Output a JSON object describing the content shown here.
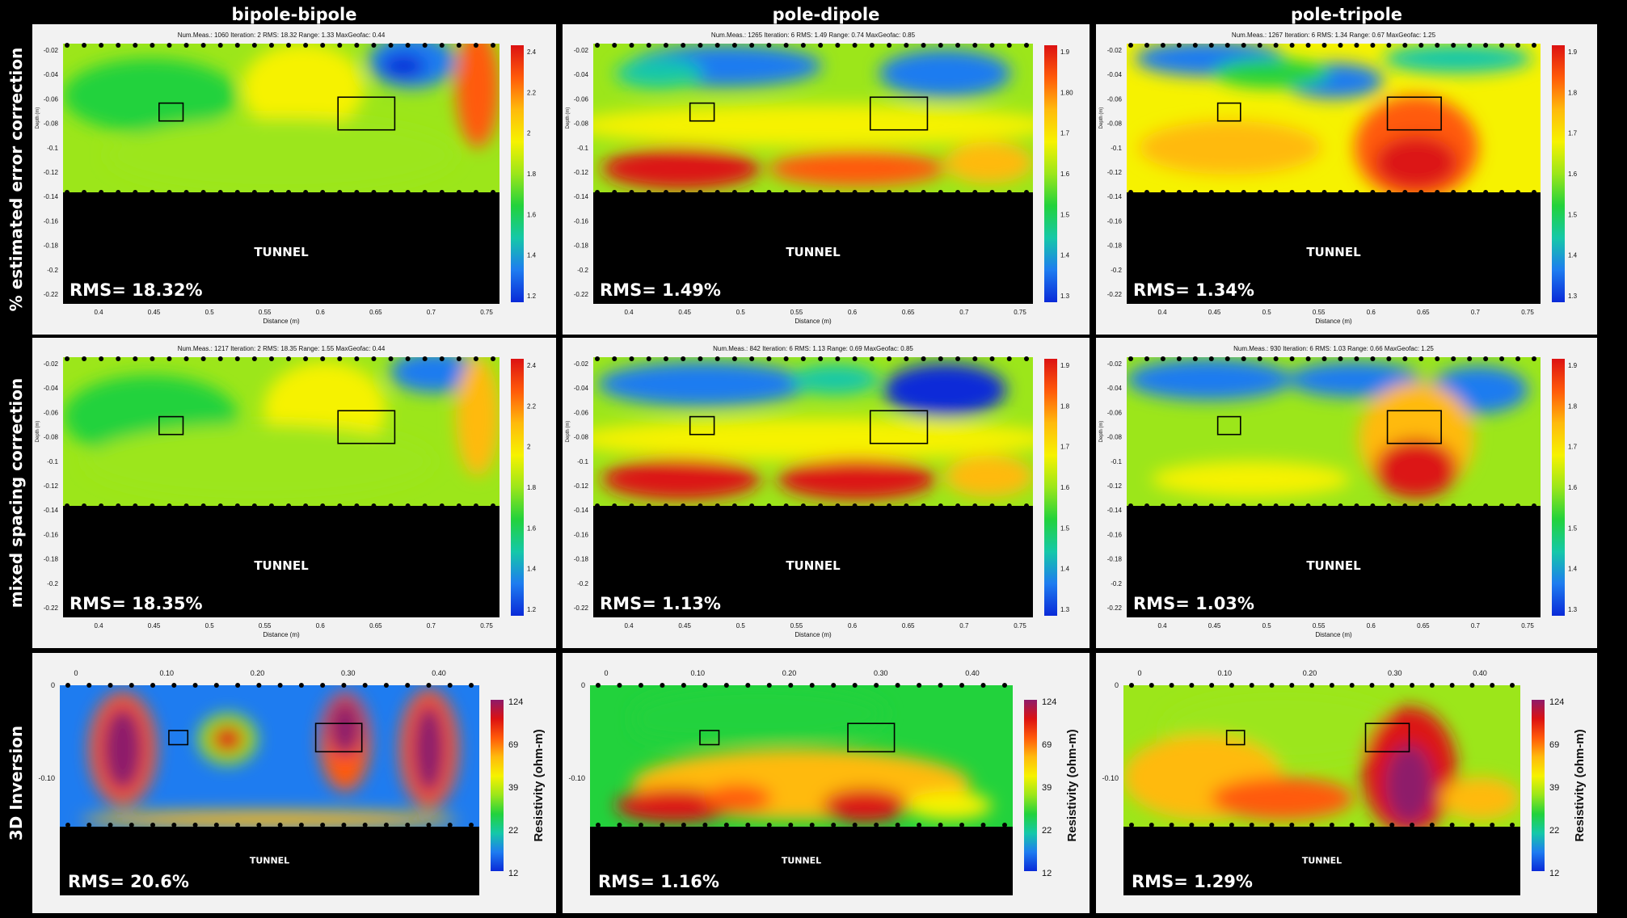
{
  "columns": [
    "bipole-bipole",
    "pole-dipole",
    "pole-tripole"
  ],
  "rows": [
    "% estimated error correction",
    "mixed spacing correction",
    "3D Inversion"
  ],
  "tunnel_label": "TUNNEL",
  "colors": {
    "scale": [
      "#0a2ad8",
      "#1e7cf0",
      "#15c8a8",
      "#22d23c",
      "#9ce61a",
      "#f6f200",
      "#ffba0c",
      "#ff5a0a",
      "#dc1212",
      "#8e1a6a"
    ],
    "background": "#000000",
    "panel": "#f2f2f2"
  },
  "res2d": {
    "depth_label": "Depth (m)",
    "distance_label": "Distance (m)",
    "depth_ticks": [
      "-0.02",
      "-0.04",
      "-0.06",
      "-0.08",
      "-0.1",
      "-0.12",
      "-0.14",
      "-0.16",
      "-0.18",
      "-0.2",
      "-0.22"
    ],
    "distance_ticks": [
      "0.4",
      "0.45",
      "0.5",
      "0.55",
      "0.6",
      "0.65",
      "0.7",
      "0.75"
    ]
  },
  "inv3d": {
    "colorbar_label": "Resistivity (ohm-m)",
    "colorbar_ticks": [
      "124",
      "69",
      "39",
      "22",
      "12"
    ],
    "x_ticks": [
      "0",
      "0.10",
      "0.20",
      "0.30",
      "0.40"
    ],
    "y_ticks": [
      "0",
      "-0.10"
    ]
  },
  "panels": [
    {
      "id": "bb-err",
      "type": "res2d",
      "rms": "RMS= 18.32%",
      "info": "Num.Meas.: 1060   Iteration: 2   RMS: 18.32   Range: 1.33   MaxGeofac: 0.44",
      "colorbar_ticks": [
        "2.4",
        "2.2",
        "2",
        "1.8",
        "1.6",
        "1.4",
        "1.2"
      ]
    },
    {
      "id": "pd-err",
      "type": "res2d",
      "rms": "RMS= 1.49%",
      "info": "Num.Meas.: 1265   Iteration: 6   RMS: 1.49   Range: 0.74   MaxGeofac: 0.85",
      "colorbar_ticks": [
        "1.9",
        "1.80",
        "1.7",
        "1.6",
        "1.5",
        "1.4",
        "1.3"
      ]
    },
    {
      "id": "pt-err",
      "type": "res2d",
      "rms": "RMS= 1.34%",
      "info": "Num.Meas.: 1267   Iteration: 6   RMS: 1.34   Range: 0.67   MaxGeofac: 1.25",
      "colorbar_ticks": [
        "1.9",
        "1.8",
        "1.7",
        "1.6",
        "1.5",
        "1.4",
        "1.3"
      ]
    },
    {
      "id": "bb-mix",
      "type": "res2d",
      "rms": "RMS= 18.35%",
      "info": "Num.Meas.: 1217   Iteration: 2   RMS: 18.35   Range: 1.55   MaxGeofac: 0.44",
      "colorbar_ticks": [
        "2.4",
        "2.2",
        "2",
        "1.8",
        "1.6",
        "1.4",
        "1.2"
      ]
    },
    {
      "id": "pd-mix",
      "type": "res2d",
      "rms": "RMS= 1.13%",
      "info": "Num.Meas.: 842   Iteration: 6   RMS: 1.13   Range: 0.69   MaxGeofac: 0.85",
      "colorbar_ticks": [
        "1.9",
        "1.8",
        "1.7",
        "1.6",
        "1.5",
        "1.4",
        "1.3"
      ]
    },
    {
      "id": "pt-mix",
      "type": "res2d",
      "rms": "RMS= 1.03%",
      "info": "Num.Meas.: 930   Iteration: 6   RMS: 1.03   Range: 0.66   MaxGeofac: 1.25",
      "colorbar_ticks": [
        "1.9",
        "1.8",
        "1.7",
        "1.6",
        "1.5",
        "1.4",
        "1.3"
      ]
    },
    {
      "id": "bb-3d",
      "type": "inv3d",
      "rms": "RMS= 20.6%"
    },
    {
      "id": "pd-3d",
      "type": "inv3d",
      "rms": "RMS= 1.16%"
    },
    {
      "id": "pt-3d",
      "type": "inv3d",
      "rms": "RMS= 1.29%"
    }
  ]
}
